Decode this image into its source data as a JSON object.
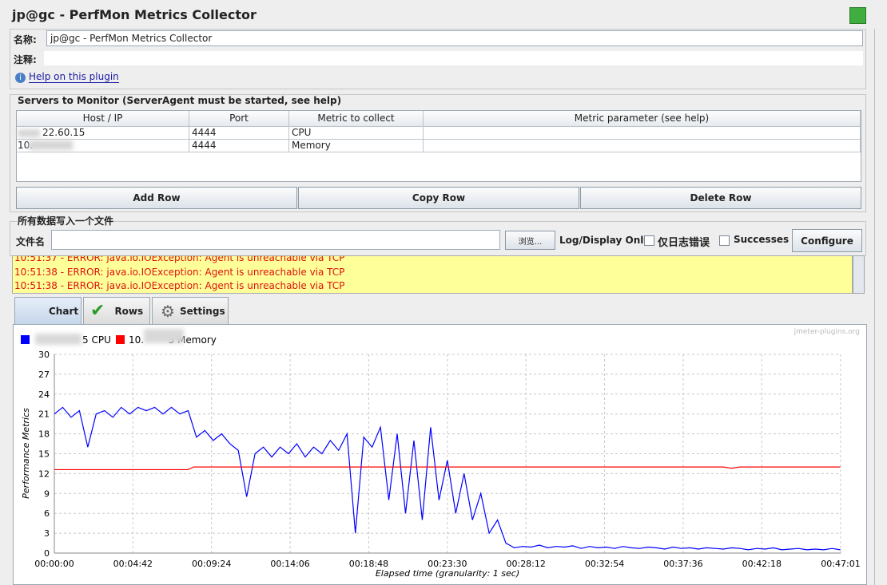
{
  "header": {
    "title": "jp@gc - PerfMon Metrics Collector"
  },
  "name_field": {
    "label": "名称:",
    "value": "jp@gc - PerfMon Metrics Collector"
  },
  "comment_field": {
    "label": "注释:"
  },
  "help_link": "Help on this plugin",
  "servers": {
    "title": "Servers to Monitor (ServerAgent must be started, see help)",
    "table": {
      "columns": [
        "Host / IP",
        "Port",
        "Metric to collect",
        "Metric parameter (see help)"
      ],
      "rows": [
        [
          "22.60.15",
          "4444",
          "CPU"
        ],
        [
          "10.",
          "4444",
          "Memory"
        ]
      ]
    },
    "buttons": [
      "Add Row",
      "Copy Row",
      "Delete Row"
    ]
  },
  "file": {
    "title": "所有数据写入一个文件",
    "label": "文件名",
    "browse": "浏览...",
    "log_display": "Log/Display Only:",
    "errors_only": "仅日志错误",
    "successes": "Successes",
    "configure": "Configure"
  },
  "log": [
    "10:51:37 - ERROR: java.io.IOException: Agent is unreachable via TCP",
    "10:51:38 - ERROR: java.io.IOException: Agent is unreachable via TCP",
    "10:51:38 - ERROR: java.io.IOException: Agent is unreachable via TCP"
  ],
  "tabs": [
    "Chart",
    "Rows",
    "Settings"
  ],
  "chart_data": {
    "type": "line",
    "watermark": "jmeter-plugins.org",
    "xlabel": "Elapsed time (granularity: 1 sec)",
    "ylabel": "Performance Metrics",
    "xlim": [
      0,
      2821
    ],
    "xticks": [
      {
        "value": 0,
        "label": "00:00:00"
      },
      {
        "value": 282,
        "label": "00:04:42"
      },
      {
        "value": 564,
        "label": "00:09:24"
      },
      {
        "value": 846,
        "label": "00:14:06"
      },
      {
        "value": 1128,
        "label": "00:18:48"
      },
      {
        "value": 1410,
        "label": "00:23:30"
      },
      {
        "value": 1692,
        "label": "00:28:12"
      },
      {
        "value": 1974,
        "label": "00:32:54"
      },
      {
        "value": 2256,
        "label": "00:37:36"
      },
      {
        "value": 2538,
        "label": "00:42:18"
      },
      {
        "value": 2821,
        "label": "00:47:01"
      }
    ],
    "ylim": [
      0,
      30
    ],
    "yticks": [
      0,
      3,
      6,
      9,
      12,
      15,
      18,
      21,
      24,
      27,
      30
    ],
    "grid": true,
    "series": [
      {
        "name": "5 CPU",
        "color": "#0000ff",
        "x": [
          0,
          30,
          60,
          90,
          120,
          150,
          180,
          210,
          240,
          270,
          300,
          330,
          360,
          390,
          420,
          450,
          480,
          510,
          540,
          570,
          600,
          630,
          660,
          690,
          720,
          750,
          780,
          810,
          840,
          870,
          900,
          930,
          960,
          990,
          1020,
          1050,
          1080,
          1110,
          1140,
          1170,
          1200,
          1230,
          1260,
          1290,
          1320,
          1350,
          1380,
          1410,
          1440,
          1470,
          1500,
          1530,
          1560,
          1590,
          1620,
          1650,
          1680,
          1710,
          1740,
          1770,
          1800,
          1830,
          1860,
          1890,
          1920,
          1950,
          1980,
          2010,
          2040,
          2070,
          2100,
          2130,
          2160,
          2190,
          2220,
          2250,
          2280,
          2310,
          2340,
          2370,
          2400,
          2430,
          2460,
          2490,
          2520,
          2550,
          2580,
          2610,
          2640,
          2670,
          2700,
          2730,
          2760,
          2790,
          2820
        ],
        "values": [
          21,
          22,
          20.5,
          21.5,
          16,
          21,
          21.5,
          20.5,
          22,
          21,
          22,
          21.5,
          22,
          21,
          22,
          21,
          21.5,
          17.5,
          18.5,
          17,
          18,
          16.5,
          15.5,
          8.5,
          15,
          16,
          14.5,
          16,
          15,
          16.5,
          14.5,
          16,
          15,
          17,
          15.5,
          18,
          3,
          17.5,
          16,
          19,
          8,
          18,
          6,
          17,
          5,
          19,
          8,
          14,
          6,
          12,
          5,
          9,
          3,
          5,
          1.5,
          0.8,
          1,
          0.9,
          1.2,
          0.8,
          1,
          0.9,
          1.1,
          0.7,
          1,
          0.8,
          0.9,
          0.7,
          1,
          0.8,
          0.7,
          0.9,
          0.8,
          0.6,
          0.9,
          0.7,
          0.8,
          0.6,
          0.8,
          0.7,
          0.6,
          0.8,
          0.7,
          0.5,
          0.7,
          0.6,
          0.8,
          0.5,
          0.6,
          0.7,
          0.5,
          0.6,
          0.5,
          0.7,
          0.5
        ]
      },
      {
        "name": "10.        5 Memory",
        "color": "#ff0000",
        "x": [
          0,
          480,
          500,
          2400,
          2430,
          2460,
          2820
        ],
        "values": [
          12.6,
          12.6,
          13,
          13,
          12.8,
          13,
          13
        ]
      }
    ]
  }
}
